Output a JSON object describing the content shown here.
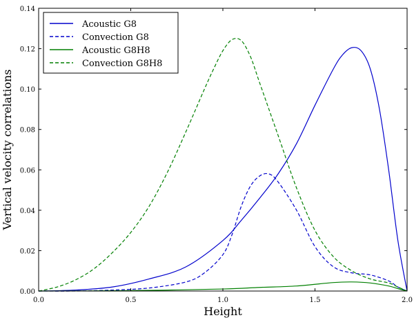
{
  "chart_data": {
    "type": "line",
    "title": "",
    "xlabel": "Height",
    "ylabel": "Vertical velocity correlations",
    "xlim": [
      0.0,
      2.0
    ],
    "ylim": [
      0.0,
      0.14
    ],
    "xticks": [
      "0.0",
      "0.5",
      "1.0",
      "1.5",
      "2.0"
    ],
    "yticks": [
      "0.00",
      "0.02",
      "0.04",
      "0.06",
      "0.08",
      "0.10",
      "0.12",
      "0.14"
    ],
    "legend_position": "top-left",
    "series": [
      {
        "name": "Acoustic G8",
        "color": "#0000cc",
        "style": "solid",
        "points": [
          [
            0.0,
            0.0
          ],
          [
            0.2,
            0.0005
          ],
          [
            0.4,
            0.002
          ],
          [
            0.6,
            0.006
          ],
          [
            0.8,
            0.012
          ],
          [
            1.0,
            0.025
          ],
          [
            1.1,
            0.035
          ],
          [
            1.2,
            0.046
          ],
          [
            1.3,
            0.058
          ],
          [
            1.4,
            0.073
          ],
          [
            1.5,
            0.092
          ],
          [
            1.6,
            0.11
          ],
          [
            1.65,
            0.117
          ],
          [
            1.7,
            0.1205
          ],
          [
            1.75,
            0.119
          ],
          [
            1.8,
            0.11
          ],
          [
            1.85,
            0.09
          ],
          [
            1.9,
            0.06
          ],
          [
            1.95,
            0.025
          ],
          [
            2.0,
            0.0
          ]
        ]
      },
      {
        "name": "Convection G8",
        "color": "#0000cc",
        "style": "dashed",
        "points": [
          [
            0.0,
            0.0
          ],
          [
            0.2,
            0.0
          ],
          [
            0.4,
            0.0005
          ],
          [
            0.6,
            0.0015
          ],
          [
            0.8,
            0.0045
          ],
          [
            0.9,
            0.009
          ],
          [
            1.0,
            0.018
          ],
          [
            1.05,
            0.028
          ],
          [
            1.1,
            0.042
          ],
          [
            1.15,
            0.052
          ],
          [
            1.2,
            0.057
          ],
          [
            1.25,
            0.058
          ],
          [
            1.3,
            0.054
          ],
          [
            1.4,
            0.04
          ],
          [
            1.5,
            0.022
          ],
          [
            1.6,
            0.012
          ],
          [
            1.7,
            0.009
          ],
          [
            1.8,
            0.008
          ],
          [
            1.9,
            0.005
          ],
          [
            1.95,
            0.002
          ],
          [
            2.0,
            0.0
          ]
        ]
      },
      {
        "name": "Acoustic G8H8",
        "color": "#007f00",
        "style": "solid",
        "points": [
          [
            0.0,
            0.0
          ],
          [
            0.5,
            0.0002
          ],
          [
            1.0,
            0.001
          ],
          [
            1.2,
            0.0018
          ],
          [
            1.4,
            0.0025
          ],
          [
            1.6,
            0.0042
          ],
          [
            1.7,
            0.0045
          ],
          [
            1.8,
            0.004
          ],
          [
            1.9,
            0.0025
          ],
          [
            1.95,
            0.0012
          ],
          [
            2.0,
            0.0
          ]
        ]
      },
      {
        "name": "Convection G8H8",
        "color": "#007f00",
        "style": "dashed",
        "points": [
          [
            0.0,
            0.0
          ],
          [
            0.1,
            0.002
          ],
          [
            0.2,
            0.0055
          ],
          [
            0.3,
            0.011
          ],
          [
            0.4,
            0.019
          ],
          [
            0.5,
            0.029
          ],
          [
            0.6,
            0.042
          ],
          [
            0.7,
            0.059
          ],
          [
            0.8,
            0.079
          ],
          [
            0.9,
            0.1
          ],
          [
            0.95,
            0.11
          ],
          [
            1.0,
            0.119
          ],
          [
            1.05,
            0.1245
          ],
          [
            1.1,
            0.124
          ],
          [
            1.15,
            0.116
          ],
          [
            1.2,
            0.103
          ],
          [
            1.3,
            0.077
          ],
          [
            1.4,
            0.051
          ],
          [
            1.5,
            0.03
          ],
          [
            1.6,
            0.017
          ],
          [
            1.7,
            0.01
          ],
          [
            1.8,
            0.006
          ],
          [
            1.9,
            0.004
          ],
          [
            1.95,
            0.002
          ],
          [
            2.0,
            0.0
          ]
        ]
      }
    ]
  }
}
